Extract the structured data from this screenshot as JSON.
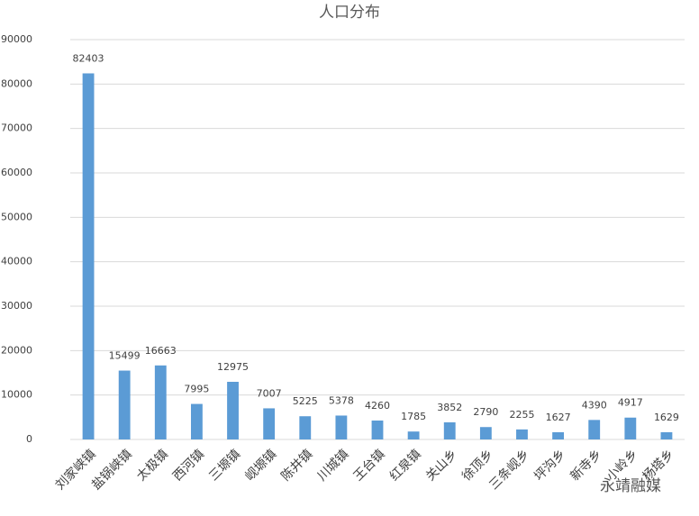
{
  "chart_data": {
    "type": "bar",
    "title": "人口分布",
    "categories": [
      "刘家峡镇",
      "盐锅峡镇",
      "太极镇",
      "西河镇",
      "三塬镇",
      "岘塬镇",
      "陈井镇",
      "川城镇",
      "王台镇",
      "红泉镇",
      "关山乡",
      "徐顶乡",
      "三条岘乡",
      "坪沟乡",
      "新寺乡",
      "小岭乡",
      "杨塔乡"
    ],
    "values": [
      82403,
      15499,
      16663,
      7995,
      12975,
      7007,
      5225,
      5378,
      4260,
      1785,
      3852,
      2790,
      2255,
      1627,
      4390,
      4917,
      1629
    ],
    "color": "#5b9bd5",
    "ylim": [
      0,
      90000
    ],
    "yticks": [
      0,
      10000,
      20000,
      30000,
      40000,
      50000,
      60000,
      70000,
      80000,
      90000
    ],
    "grid": true,
    "watermark": "永靖融媒"
  }
}
